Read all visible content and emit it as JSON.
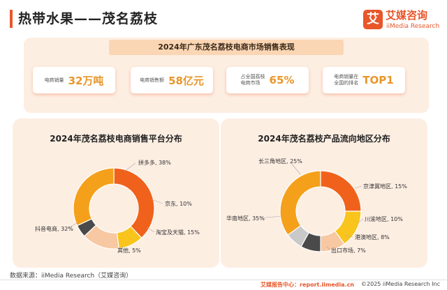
{
  "header": {
    "title": "热带水果——茂名荔枝"
  },
  "logo": {
    "mark": "艾",
    "name": "艾媒咨询",
    "sub": "iiMedia Research"
  },
  "summary": {
    "title": "2024年广东茂名荔枝电商市场销售表现",
    "kpis": [
      {
        "label": "电商销量",
        "value": "32万吨"
      },
      {
        "label": "电商销售额",
        "value": "58亿元"
      },
      {
        "label": "占全国荔枝\n电商市场",
        "value": "65%"
      },
      {
        "label": "电商销量在\n全国的排名",
        "value": "TOP1"
      }
    ]
  },
  "chart_data": [
    {
      "type": "pie",
      "donut": true,
      "title": "2024年茂名荔枝电商销售平台分布",
      "slices": [
        {
          "label": "拼多多",
          "value": 38,
          "text": "拼多多, 38%",
          "color": "#f0621b"
        },
        {
          "label": "京东",
          "value": 10,
          "text": "京东, 10%",
          "color": "#f9c51c"
        },
        {
          "label": "淘宝及天猫",
          "value": 15,
          "text": "淘宝及天猫, 15%",
          "color": "#f7c8a2"
        },
        {
          "label": "其他",
          "value": 5,
          "text": "其他, 5%",
          "color": "#4a4a4a"
        },
        {
          "label": "抖音电商",
          "value": 32,
          "text": "抖音电商, 32%",
          "color": "#f5a01a"
        }
      ]
    },
    {
      "type": "pie",
      "donut": true,
      "title": "2024年茂名荔枝产品流向地区分布",
      "slices": [
        {
          "label": "长三角地区",
          "value": 25,
          "text": "长三角地区, 25%",
          "color": "#f0621b"
        },
        {
          "label": "京津冀地区",
          "value": 15,
          "text": "京津冀地区, 15%",
          "color": "#f9c51c"
        },
        {
          "label": "川渝地区",
          "value": 10,
          "text": "川渝地区, 10%",
          "color": "#f7c8a2"
        },
        {
          "label": "港澳地区",
          "value": 8,
          "text": "港澳地区, 8%",
          "color": "#4a4a4a"
        },
        {
          "label": "出口市场",
          "value": 7,
          "text": "出口市场, 7%",
          "color": "#c9c9c9"
        },
        {
          "label": "华南地区",
          "value": 35,
          "text": "华南地区, 35%",
          "color": "#f5a01a"
        }
      ]
    }
  ],
  "source": "数据来源：iiMedia Research（艾媒咨询）",
  "footer": {
    "logo": "艾媒报告中心：report.iimedia.cn",
    "copyright": "©2025  iiMedia Research  Inc"
  }
}
